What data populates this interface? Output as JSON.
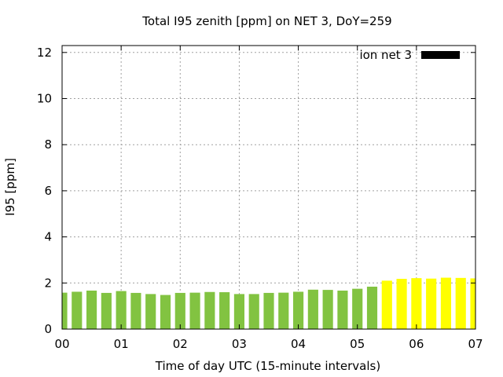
{
  "chart_data": {
    "type": "bar",
    "title": "Total I95 zenith [ppm] on NET 3, DoY=259",
    "xlabel": "Time of day UTC (15-minute intervals)",
    "ylabel": "I95 [ppm]",
    "xlim": [
      0,
      7
    ],
    "ylim": [
      0,
      12.3
    ],
    "x_ticks": [
      "00",
      "01",
      "02",
      "03",
      "04",
      "05",
      "06",
      "07"
    ],
    "y_ticks": [
      "0",
      "2",
      "4",
      "6",
      "8",
      "10",
      "12"
    ],
    "grid": true,
    "legend": {
      "position": "top-right",
      "entries": [
        {
          "label": "ion net 3",
          "color": "#000000"
        }
      ]
    },
    "colors": {
      "normal": "#82c341",
      "elevated": "#ffff00"
    },
    "series": [
      {
        "name": "ion net 3",
        "points": [
          {
            "x": 0.0,
            "y": 1.58,
            "level": "normal"
          },
          {
            "x": 0.25,
            "y": 1.62,
            "level": "normal"
          },
          {
            "x": 0.5,
            "y": 1.67,
            "level": "normal"
          },
          {
            "x": 0.75,
            "y": 1.57,
            "level": "normal"
          },
          {
            "x": 1.0,
            "y": 1.65,
            "level": "normal"
          },
          {
            "x": 1.25,
            "y": 1.57,
            "level": "normal"
          },
          {
            "x": 1.5,
            "y": 1.52,
            "level": "normal"
          },
          {
            "x": 1.75,
            "y": 1.48,
            "level": "normal"
          },
          {
            "x": 2.0,
            "y": 1.57,
            "level": "normal"
          },
          {
            "x": 2.25,
            "y": 1.58,
            "level": "normal"
          },
          {
            "x": 2.5,
            "y": 1.61,
            "level": "normal"
          },
          {
            "x": 2.75,
            "y": 1.6,
            "level": "normal"
          },
          {
            "x": 3.0,
            "y": 1.52,
            "level": "normal"
          },
          {
            "x": 3.25,
            "y": 1.52,
            "level": "normal"
          },
          {
            "x": 3.5,
            "y": 1.57,
            "level": "normal"
          },
          {
            "x": 3.75,
            "y": 1.58,
            "level": "normal"
          },
          {
            "x": 4.0,
            "y": 1.62,
            "level": "normal"
          },
          {
            "x": 4.25,
            "y": 1.71,
            "level": "normal"
          },
          {
            "x": 4.5,
            "y": 1.7,
            "level": "normal"
          },
          {
            "x": 4.75,
            "y": 1.67,
            "level": "normal"
          },
          {
            "x": 5.0,
            "y": 1.75,
            "level": "normal"
          },
          {
            "x": 5.25,
            "y": 1.84,
            "level": "normal"
          },
          {
            "x": 5.5,
            "y": 2.1,
            "level": "elevated"
          },
          {
            "x": 5.75,
            "y": 2.18,
            "level": "elevated"
          },
          {
            "x": 6.0,
            "y": 2.21,
            "level": "elevated"
          },
          {
            "x": 6.25,
            "y": 2.19,
            "level": "elevated"
          },
          {
            "x": 6.5,
            "y": 2.23,
            "level": "elevated"
          },
          {
            "x": 6.75,
            "y": 2.22,
            "level": "elevated"
          },
          {
            "x": 7.0,
            "y": 2.2,
            "level": "elevated"
          }
        ]
      }
    ]
  }
}
